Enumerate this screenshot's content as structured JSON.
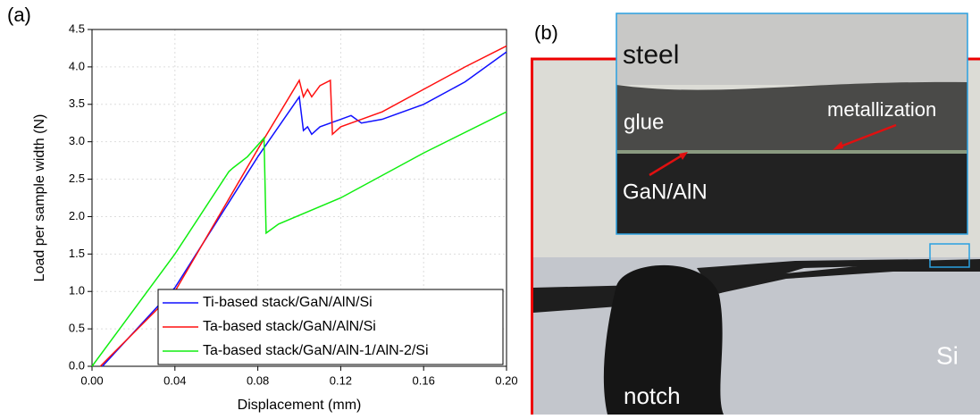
{
  "panel_labels": [
    "(a)",
    "(b)"
  ],
  "chart_data": {
    "type": "line",
    "x_label": "Displacement (mm)",
    "y_label": "Load per sample width (N)",
    "xlim": [
      0,
      0.2
    ],
    "xticks": [
      {
        "value": 0,
        "label": "0.00"
      },
      {
        "value": 0.04,
        "label": "0.04"
      },
      {
        "value": 0.08,
        "label": "0.08"
      },
      {
        "value": 0.12,
        "label": "0.12"
      },
      {
        "value": 0.16,
        "label": "0.16"
      },
      {
        "value": 0.2,
        "label": "0.20"
      }
    ],
    "ylim": [
      0,
      4.5
    ],
    "yticks": [
      {
        "value": 0,
        "label": "0.0"
      },
      0.5,
      {
        "value": 1,
        "label": "1.0"
      },
      1.5,
      {
        "value": 2,
        "label": "2.0"
      },
      2.5,
      {
        "value": 3,
        "label": "3.0"
      },
      3.5,
      {
        "value": 4,
        "label": "4.0"
      },
      4.5
    ],
    "grid": true,
    "legend": "lower-right",
    "series": [
      {
        "name": "Ti-based stack/GaN/AlN/Si",
        "color": "#1010ff",
        "x": [
          0.005,
          0.04,
          0.08,
          0.1,
          0.102,
          0.104,
          0.106,
          0.11,
          0.12,
          0.125,
          0.13,
          0.14,
          0.16,
          0.18,
          0.2
        ],
        "values": [
          0,
          1.05,
          2.8,
          3.6,
          3.15,
          3.2,
          3.1,
          3.2,
          3.3,
          3.35,
          3.25,
          3.3,
          3.5,
          3.8,
          4.2
        ]
      },
      {
        "name": "Ta-based stack/GaN/AlN/Si",
        "color": "#ff1010",
        "x": [
          0.004,
          0.04,
          0.08,
          0.1,
          0.102,
          0.104,
          0.106,
          0.11,
          0.115,
          0.116,
          0.12,
          0.13,
          0.14,
          0.16,
          0.18,
          0.2
        ],
        "values": [
          0,
          1.0,
          2.9,
          3.82,
          3.6,
          3.7,
          3.6,
          3.75,
          3.82,
          3.1,
          3.2,
          3.3,
          3.4,
          3.7,
          4.0,
          4.28
        ]
      },
      {
        "name": "Ta-based stack/GaN/AlN-1/AlN-2/Si",
        "color": "#10ee10",
        "x": [
          0,
          0.04,
          0.066,
          0.068,
          0.075,
          0.083,
          0.084,
          0.09,
          0.12,
          0.16,
          0.2
        ],
        "values": [
          0,
          1.5,
          2.6,
          2.65,
          2.8,
          3.05,
          1.78,
          1.9,
          2.25,
          2.85,
          3.4
        ]
      }
    ]
  },
  "micrograph": {
    "labels": [
      "steel",
      "glue",
      "metallization",
      "GaN/AlN",
      "notch",
      "Si"
    ]
  }
}
